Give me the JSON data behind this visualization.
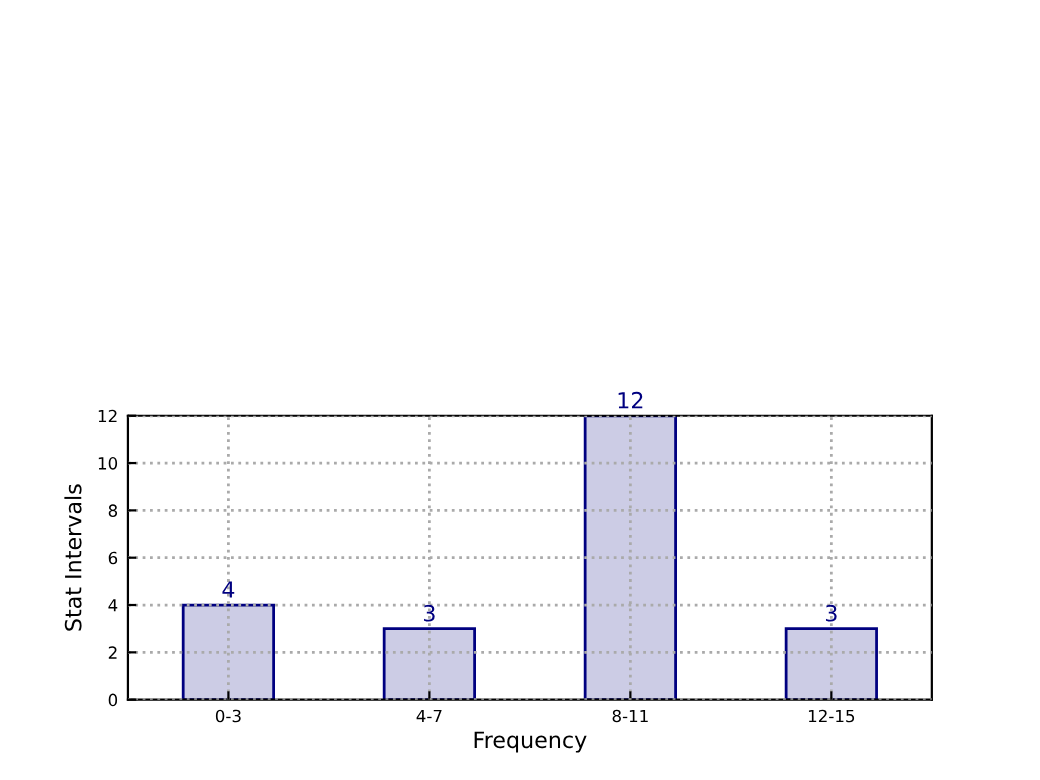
{
  "chart_data": {
    "type": "bar",
    "xlabel": "Frequency",
    "ylabel": "Stat Intervals",
    "categories": [
      "0-3",
      "4-7",
      "8-11",
      "12-15"
    ],
    "values": [
      4,
      3,
      12,
      3
    ],
    "color": "#ccccE5",
    "ylim": [
      0,
      12
    ],
    "yticks": [
      0,
      2,
      4,
      6,
      8,
      10,
      12
    ],
    "grid": true,
    "data_labels": true
  }
}
